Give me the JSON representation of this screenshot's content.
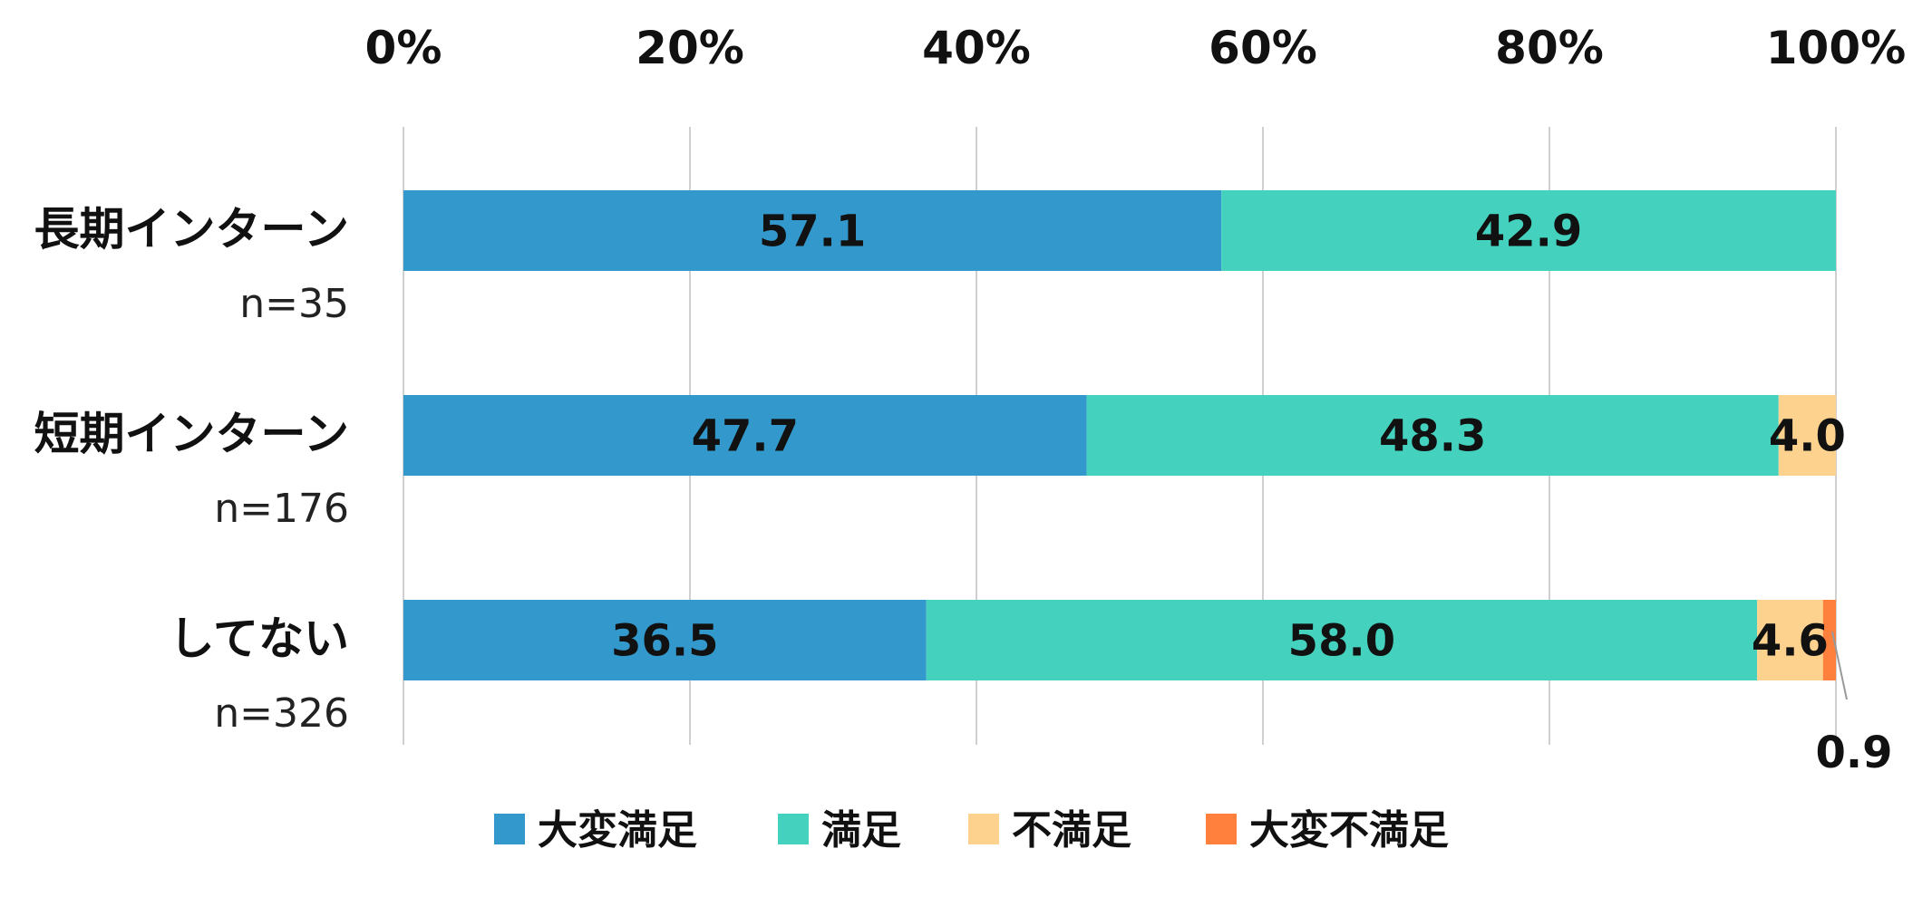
{
  "chart_data": {
    "type": "bar",
    "orientation": "horizontal",
    "stacked": "percent",
    "xlim": [
      0,
      100
    ],
    "x_ticks": [
      "0%",
      "20%",
      "40%",
      "60%",
      "80%",
      "100%"
    ],
    "grid": true,
    "legend_position": "bottom",
    "categories": [
      {
        "label": "長期インターン",
        "n": "n=35"
      },
      {
        "label": "短期インターン",
        "n": "n=176"
      },
      {
        "label": "してない",
        "n": "n=326"
      }
    ],
    "series": [
      {
        "name": "大変満足",
        "color": "#3399CC",
        "values": [
          57.1,
          47.7,
          36.5
        ],
        "labels": [
          "57.1",
          "47.7",
          "36.5"
        ]
      },
      {
        "name": "満足",
        "color": "#44D1BE",
        "values": [
          42.9,
          48.3,
          58.0
        ],
        "labels": [
          "42.9",
          "48.3",
          "58.0"
        ]
      },
      {
        "name": "不満足",
        "color": "#FCD28E",
        "values": [
          0,
          4.0,
          4.6
        ],
        "labels": [
          "",
          "4.0",
          "4.6"
        ]
      },
      {
        "name": "大変不満足",
        "color": "#FF7F3C",
        "values": [
          0,
          0,
          0.9
        ],
        "labels": [
          "",
          "",
          "0.9"
        ]
      }
    ]
  }
}
